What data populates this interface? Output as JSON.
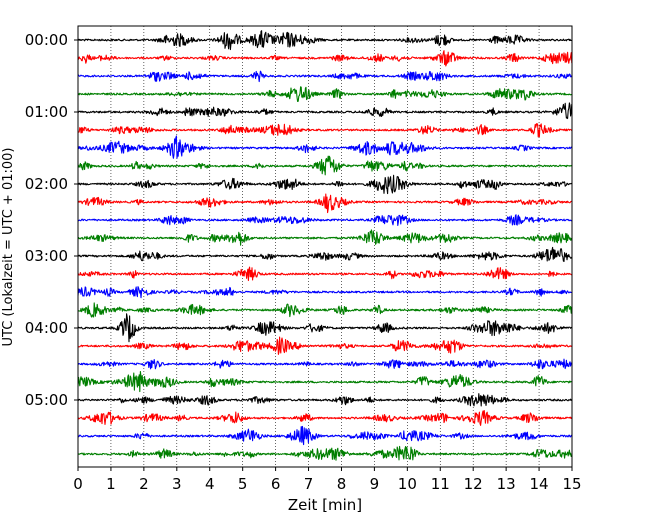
{
  "chart_data": {
    "type": "line",
    "subtype": "helicorder",
    "xlabel": "Zeit  [min]",
    "ylabel": "UTC (Lokalzeit = UTC + 01:00)",
    "xlim": [
      0,
      15
    ],
    "x_ticks": [
      "0",
      "1",
      "2",
      "3",
      "4",
      "5",
      "6",
      "7",
      "8",
      "9",
      "10",
      "11",
      "12",
      "13",
      "14",
      "15"
    ],
    "y_tick_labels": [
      "00:00",
      "01:00",
      "02:00",
      "03:00",
      "04:00",
      "05:00"
    ],
    "traces_per_hour": 4,
    "trace_count": 24,
    "trace_colors": [
      "#000000",
      "#ff0000",
      "#0000ff",
      "#007f00"
    ],
    "grid": "vertical dotted lines at each minute"
  }
}
